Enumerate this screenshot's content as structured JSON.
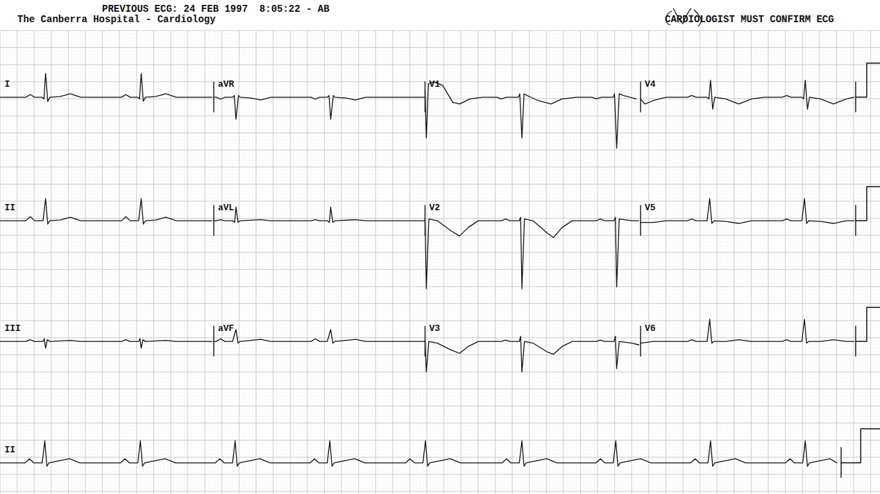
{
  "header": {
    "previous_ecg": "PREVIOUS ECG: 24 FEB 1997  8:05:22 - AB",
    "hospital": "The Canberra Hospital - Cardiology",
    "notice": "CARDIOLOGIST MUST CONFIRM ECG"
  },
  "chart_data": [
    {
      "type": "line",
      "tick_labels": false,
      "color": "#111111",
      "xlim": [
        0,
        10.31
      ],
      "ylim": [
        -2.2,
        1.4
      ],
      "series": [
        {
          "name": "I",
          "x": [
            0,
            0.3,
            0.35,
            0.4,
            0.49,
            0.51,
            0.53,
            0.555,
            0.58,
            0.7,
            0.82,
            0.94,
            1.42,
            1.47,
            1.52,
            1.61,
            1.63,
            1.65,
            1.675,
            1.7,
            1.82,
            1.94,
            2.06,
            2.48
          ],
          "values": [
            0,
            0,
            0.08,
            0,
            0,
            -0.05,
            0.7,
            -0.12,
            0,
            0.02,
            0.1,
            0,
            0,
            0.08,
            0,
            0,
            -0.05,
            0.7,
            -0.12,
            0,
            0.02,
            0.1,
            0,
            0
          ]
        },
        {
          "name": "aVR",
          "x": [
            2.5,
            2.53,
            2.58,
            2.63,
            2.72,
            2.74,
            2.76,
            2.79,
            2.81,
            2.93,
            3.05,
            3.17,
            3.64,
            3.69,
            3.74,
            3.83,
            3.85,
            3.87,
            3.9,
            3.92,
            4.04,
            4.16,
            4.28,
            4.97
          ],
          "values": [
            0,
            0,
            -0.06,
            0,
            0,
            0.05,
            -0.65,
            0.05,
            0,
            -0.02,
            -0.08,
            0,
            0,
            -0.06,
            0,
            0,
            0.05,
            -0.65,
            0.05,
            0,
            -0.02,
            -0.08,
            0,
            0
          ]
        },
        {
          "name": "V1",
          "x": [
            4.975,
            4.99,
            5.015,
            5.08,
            5.18,
            5.3,
            5.38,
            5.5,
            5.65,
            5.82,
            5.87,
            5.93,
            6.07,
            6.085,
            6.11,
            6.135,
            6.17,
            6.3,
            6.45,
            6.58,
            6.75,
            6.93,
            6.98,
            7.04,
            7.18,
            7.195,
            7.22,
            7.25,
            7.3,
            7.45
          ],
          "values": [
            0.2,
            -1.2,
            0.4,
            0.45,
            0.35,
            -0.15,
            -0.2,
            -0.05,
            0,
            0,
            -0.05,
            0,
            0,
            0.1,
            -1.2,
            0.1,
            0.05,
            -0.1,
            -0.2,
            -0.05,
            0,
            0,
            -0.05,
            0,
            0,
            0.1,
            -1.5,
            0.1,
            0.05,
            -0.05
          ]
        },
        {
          "name": "V4",
          "x": [
            7.5,
            7.55,
            7.65,
            7.8,
            8.05,
            8.1,
            8.15,
            8.28,
            8.3,
            8.32,
            8.345,
            8.37,
            8.5,
            8.65,
            8.8,
            8.95,
            9.16,
            9.21,
            9.26,
            9.39,
            9.41,
            9.43,
            9.455,
            9.48,
            9.61,
            9.76,
            9.91,
            10.0
          ],
          "values": [
            -0.05,
            -0.2,
            -0.1,
            0,
            0,
            0.05,
            0,
            0,
            -0.05,
            0.5,
            -0.35,
            0,
            -0.05,
            -0.2,
            -0.05,
            0,
            0,
            0.05,
            0,
            0,
            -0.05,
            0.5,
            -0.35,
            0,
            -0.05,
            -0.2,
            -0.05,
            0
          ]
        }
      ],
      "calibration": {
        "x": [
          10.02,
          10.15,
          10.15,
          10.31
        ],
        "values": [
          0,
          0,
          1,
          1
        ]
      }
    },
    {
      "type": "line",
      "tick_labels": false,
      "color": "#111111",
      "xlim": [
        0,
        10.31
      ],
      "ylim": [
        -2.2,
        1.4
      ],
      "series": [
        {
          "name": "II",
          "x": [
            0,
            0.3,
            0.35,
            0.4,
            0.5,
            0.53,
            0.555,
            0.58,
            0.7,
            0.82,
            0.94,
            1.42,
            1.47,
            1.52,
            1.62,
            1.65,
            1.675,
            1.7,
            1.82,
            1.94,
            2.06,
            2.48
          ],
          "values": [
            0,
            0,
            0.12,
            0,
            0,
            0.65,
            -0.1,
            0,
            0.02,
            0.1,
            0,
            0,
            0.12,
            0,
            0,
            0.65,
            -0.1,
            0,
            0.02,
            0.1,
            0,
            0
          ]
        },
        {
          "name": "aVL",
          "x": [
            2.5,
            2.53,
            2.58,
            2.63,
            2.72,
            2.745,
            2.76,
            2.785,
            2.81,
            3.05,
            3.17,
            3.64,
            3.69,
            3.74,
            3.83,
            3.855,
            3.87,
            3.895,
            3.92,
            4.16,
            4.28,
            4.97
          ],
          "values": [
            0,
            0,
            0.03,
            0,
            0,
            -0.05,
            0.4,
            -0.05,
            0,
            0.03,
            0,
            0,
            0.03,
            0,
            0,
            -0.05,
            0.4,
            -0.05,
            0,
            0.03,
            0,
            0
          ]
        },
        {
          "name": "V2",
          "x": [
            4.975,
            4.99,
            5.02,
            5.12,
            5.28,
            5.38,
            5.48,
            5.6,
            5.87,
            5.92,
            5.97,
            6.08,
            6.095,
            6.11,
            6.14,
            6.24,
            6.4,
            6.48,
            6.58,
            6.7,
            6.98,
            7.03,
            7.08,
            7.19,
            7.205,
            7.22,
            7.25,
            7.4,
            7.48
          ],
          "values": [
            0.1,
            -2.0,
            0.05,
            0,
            -0.3,
            -0.45,
            -0.2,
            0,
            0,
            0.05,
            0,
            0,
            0.1,
            -2.0,
            0.05,
            0,
            -0.35,
            -0.5,
            -0.2,
            0,
            0,
            0.05,
            0,
            0,
            0.1,
            -1.95,
            0.05,
            0,
            0
          ]
        },
        {
          "name": "V5",
          "x": [
            7.5,
            7.65,
            7.8,
            8.05,
            8.1,
            8.15,
            8.28,
            8.31,
            8.335,
            8.36,
            8.5,
            8.65,
            8.8,
            9.16,
            9.21,
            9.26,
            9.39,
            9.42,
            9.445,
            9.47,
            9.61,
            9.76,
            9.91,
            10.0
          ],
          "values": [
            -0.05,
            -0.05,
            0,
            0,
            0.05,
            0,
            0,
            0.65,
            -0.08,
            0,
            -0.02,
            -0.08,
            0,
            0,
            0.05,
            0,
            0,
            0.65,
            -0.08,
            0,
            -0.02,
            -0.08,
            0,
            0
          ]
        }
      ],
      "calibration": {
        "x": [
          10.02,
          10.15,
          10.15,
          10.31
        ],
        "values": [
          0,
          0,
          1,
          1
        ]
      }
    },
    {
      "type": "line",
      "tick_labels": false,
      "color": "#111111",
      "xlim": [
        0,
        10.31
      ],
      "ylim": [
        -2.2,
        1.4
      ],
      "series": [
        {
          "name": "III",
          "x": [
            0,
            0.3,
            0.35,
            0.4,
            0.5,
            0.515,
            0.53,
            0.55,
            0.58,
            0.82,
            0.94,
            1.42,
            1.47,
            1.52,
            1.62,
            1.635,
            1.65,
            1.67,
            1.7,
            1.94,
            2.06,
            2.48
          ],
          "values": [
            0,
            0,
            0.05,
            0,
            0,
            0.08,
            -0.2,
            0.05,
            0,
            0.03,
            0,
            0,
            0.05,
            0,
            0,
            0.08,
            -0.2,
            0.05,
            0,
            0.03,
            0,
            0
          ]
        },
        {
          "name": "aVF",
          "x": [
            2.5,
            2.53,
            2.58,
            2.63,
            2.72,
            2.76,
            2.785,
            2.81,
            3.05,
            3.17,
            3.64,
            3.69,
            3.74,
            3.83,
            3.87,
            3.895,
            3.92,
            4.16,
            4.28,
            4.97
          ],
          "values": [
            0,
            0,
            0.08,
            0,
            0,
            0.35,
            -0.05,
            0,
            0.06,
            0,
            0,
            0.08,
            0,
            0,
            0.35,
            -0.05,
            0,
            0.06,
            0,
            0
          ]
        },
        {
          "name": "V3",
          "x": [
            4.975,
            4.99,
            5.02,
            5.12,
            5.28,
            5.38,
            5.48,
            5.6,
            5.87,
            5.92,
            5.97,
            6.08,
            6.095,
            6.11,
            6.14,
            6.24,
            6.4,
            6.48,
            6.58,
            6.7,
            6.98,
            7.03,
            7.08,
            7.19,
            7.205,
            7.22,
            7.25,
            7.4,
            7.48
          ],
          "values": [
            0.05,
            -0.9,
            0,
            -0.05,
            -0.25,
            -0.35,
            -0.15,
            0,
            0,
            0.04,
            0,
            0,
            0.15,
            -0.9,
            0,
            -0.05,
            -0.3,
            -0.38,
            -0.15,
            0,
            0,
            0.04,
            0,
            0,
            0.15,
            -0.8,
            0,
            -0.05,
            -0.1
          ]
        },
        {
          "name": "V6",
          "x": [
            7.5,
            7.65,
            8.05,
            8.1,
            8.15,
            8.28,
            8.31,
            8.335,
            8.36,
            8.5,
            8.65,
            8.8,
            9.16,
            9.21,
            9.26,
            9.39,
            9.42,
            9.445,
            9.47,
            9.61,
            9.76,
            9.91,
            10.0
          ],
          "values": [
            -0.05,
            0,
            0,
            0.05,
            0,
            0,
            0.65,
            -0.05,
            0,
            0,
            0.05,
            0,
            0,
            0.05,
            0,
            0,
            0.65,
            -0.05,
            0,
            0,
            0.05,
            0,
            0
          ]
        }
      ],
      "calibration": {
        "x": [
          10.02,
          10.15,
          10.15,
          10.31
        ],
        "values": [
          0,
          0,
          1,
          1
        ]
      }
    },
    {
      "type": "line",
      "tick_labels": false,
      "color": "#111111",
      "xlim": [
        0,
        10.31
      ],
      "ylim": [
        -0.9,
        1.4
      ],
      "series": [
        {
          "name": "II",
          "x": [
            0,
            0.29,
            0.34,
            0.39,
            0.49,
            0.52,
            0.545,
            0.57,
            0.81,
            0.93,
            1.41,
            1.46,
            1.51,
            1.61,
            1.64,
            1.665,
            1.69,
            1.93,
            2.05,
            2.52,
            2.57,
            2.62,
            2.72,
            2.75,
            2.775,
            2.8,
            3.04,
            3.16,
            3.63,
            3.68,
            3.73,
            3.83,
            3.86,
            3.885,
            3.91,
            4.15,
            4.27,
            4.75,
            4.8,
            4.85,
            4.95,
            4.98,
            5.005,
            5.03,
            5.27,
            5.39,
            5.88,
            5.93,
            5.98,
            6.08,
            6.11,
            6.135,
            6.16,
            6.4,
            6.52,
            6.98,
            7.03,
            7.08,
            7.18,
            7.21,
            7.235,
            7.26,
            7.5,
            7.62,
            8.09,
            8.14,
            8.19,
            8.29,
            8.32,
            8.345,
            8.37,
            8.61,
            8.73,
            9.2,
            9.25,
            9.3,
            9.4,
            9.43,
            9.455,
            9.48,
            9.72,
            9.8
          ],
          "values": [
            0,
            0,
            0.12,
            0,
            0,
            0.65,
            -0.1,
            0,
            0.12,
            0,
            0,
            0.12,
            0,
            0,
            0.65,
            -0.1,
            0,
            0.12,
            0,
            0,
            0.12,
            0,
            0,
            0.65,
            -0.1,
            0,
            0.12,
            0,
            0,
            0.12,
            0,
            0,
            0.65,
            -0.1,
            0,
            0.12,
            0,
            0,
            0.12,
            0,
            0,
            0.65,
            -0.1,
            0,
            0.12,
            0,
            0,
            0.12,
            0,
            0,
            0.65,
            -0.1,
            0,
            0.12,
            0,
            0,
            0.12,
            0,
            0,
            0.65,
            -0.1,
            0,
            0.12,
            0,
            0,
            0.12,
            0,
            0,
            0.65,
            -0.1,
            0,
            0.12,
            0,
            0,
            0.12,
            0,
            0,
            0.65,
            -0.1,
            0,
            0.12,
            0
          ]
        }
      ],
      "calibration": {
        "x": [
          9.85,
          10.08,
          10.08,
          10.31
        ],
        "values": [
          0,
          0,
          1,
          1
        ]
      }
    }
  ]
}
